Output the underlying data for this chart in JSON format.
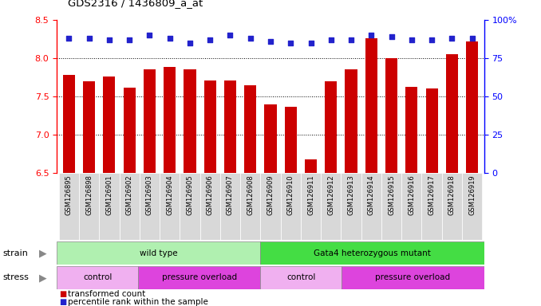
{
  "title": "GDS2316 / 1436809_a_at",
  "samples": [
    "GSM126895",
    "GSM126898",
    "GSM126901",
    "GSM126902",
    "GSM126903",
    "GSM126904",
    "GSM126905",
    "GSM126906",
    "GSM126907",
    "GSM126908",
    "GSM126909",
    "GSM126910",
    "GSM126911",
    "GSM126912",
    "GSM126913",
    "GSM126914",
    "GSM126915",
    "GSM126916",
    "GSM126917",
    "GSM126918",
    "GSM126919"
  ],
  "transformed_count": [
    7.78,
    7.7,
    7.76,
    7.61,
    7.85,
    7.88,
    7.85,
    7.71,
    7.71,
    7.65,
    7.4,
    7.36,
    6.68,
    7.7,
    7.85,
    8.26,
    8.0,
    7.62,
    7.6,
    8.05,
    8.22
  ],
  "percentile_rank": [
    88,
    88,
    87,
    87,
    90,
    88,
    85,
    87,
    90,
    88,
    86,
    85,
    85,
    87,
    87,
    90,
    89,
    87,
    87,
    88,
    88
  ],
  "ylim_left": [
    6.5,
    8.5
  ],
  "ylim_right": [
    0,
    100
  ],
  "yticks_left": [
    6.5,
    7.0,
    7.5,
    8.0,
    8.5
  ],
  "yticks_right": [
    0,
    25,
    50,
    75,
    100
  ],
  "bar_color": "#cc0000",
  "dot_color": "#2222cc",
  "bar_width": 0.6,
  "strain_groups": [
    {
      "label": "wild type",
      "start": 0,
      "end": 10,
      "color": "#b0f0b0"
    },
    {
      "label": "Gata4 heterozygous mutant",
      "start": 10,
      "end": 21,
      "color": "#44dd44"
    }
  ],
  "stress_groups": [
    {
      "label": "control",
      "start": 0,
      "end": 4,
      "color": "#f0b0f0"
    },
    {
      "label": "pressure overload",
      "start": 4,
      "end": 10,
      "color": "#dd44dd"
    },
    {
      "label": "control",
      "start": 10,
      "end": 14,
      "color": "#f0b0f0"
    },
    {
      "label": "pressure overload",
      "start": 14,
      "end": 21,
      "color": "#dd44dd"
    }
  ],
  "grid_yticks": [
    7.0,
    7.5,
    8.0
  ],
  "xtick_bg_color": "#d8d8d8",
  "background_color": "#ffffff"
}
